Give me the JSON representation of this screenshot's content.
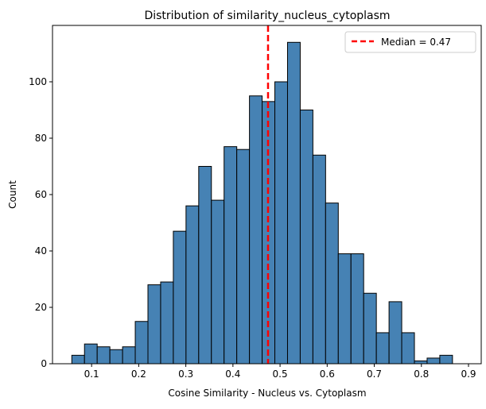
{
  "chart_data": {
    "type": "bar",
    "title": "Distribution of similarity_nucleus_cytoplasm",
    "xlabel": "Cosine Similarity - Nucleus vs. Cytoplasm",
    "ylabel": "Count",
    "bin_start": 0.058,
    "bin_end": 0.866,
    "counts": [
      3,
      7,
      6,
      5,
      6,
      15,
      28,
      29,
      47,
      56,
      70,
      58,
      77,
      76,
      95,
      93,
      100,
      114,
      90,
      74,
      57,
      39,
      39,
      25,
      11,
      22,
      11,
      1,
      2,
      3
    ],
    "xlim": [
      0.017,
      0.927
    ],
    "ylim": [
      0,
      120
    ],
    "xticks": [
      "0.1",
      "0.2",
      "0.3",
      "0.4",
      "0.5",
      "0.6",
      "0.7",
      "0.8",
      "0.9"
    ],
    "yticks": [
      "0",
      "20",
      "40",
      "60",
      "80",
      "100"
    ],
    "grid": false,
    "bar_color": "#4682b4",
    "edge_color": "#000000",
    "median": {
      "value": 0.4745,
      "label": "Median = 0.47",
      "color": "#ff0000",
      "style": "dashed"
    },
    "legend_position": "top-right"
  }
}
